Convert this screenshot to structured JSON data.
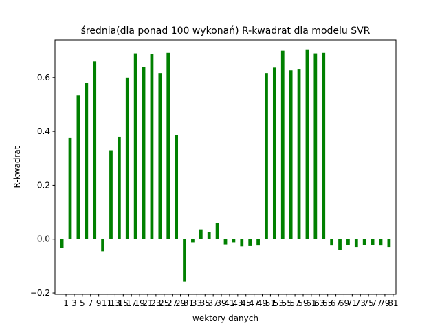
{
  "chart_data": {
    "type": "bar",
    "title": "średnia(dla ponad 100 wykonań) R-kwadrat dla modelu SVR",
    "xlabel": "wektory danych",
    "ylabel": "R-kwadrat",
    "bar_color": "#008000",
    "ylim": [
      -0.205,
      0.74
    ],
    "xlim": [
      -1.7,
      81.7
    ],
    "yticks": [
      -0.2,
      0.0,
      0.2,
      0.4,
      0.6
    ],
    "ytick_labels": [
      "−0.2",
      "0.0",
      "0.2",
      "0.4",
      "0.6"
    ],
    "xticks": [
      1,
      3,
      5,
      7,
      9,
      11,
      13,
      15,
      17,
      19,
      21,
      23,
      25,
      27,
      29,
      31,
      33,
      35,
      37,
      39,
      41,
      43,
      45,
      47,
      49,
      51,
      53,
      55,
      57,
      59,
      61,
      63,
      65,
      67,
      69,
      71,
      73,
      75,
      77,
      79,
      81
    ],
    "bar_width": 0.8,
    "x": [
      0,
      2,
      4,
      6,
      8,
      10,
      12,
      14,
      16,
      18,
      20,
      22,
      24,
      26,
      28,
      30,
      32,
      34,
      36,
      38,
      40,
      42,
      44,
      46,
      48,
      50,
      52,
      54,
      56,
      58,
      60,
      62,
      64,
      66,
      68,
      70,
      72,
      74,
      76,
      78,
      80
    ],
    "values": [
      -0.033,
      0.375,
      0.535,
      0.58,
      0.66,
      -0.045,
      0.33,
      0.38,
      0.6,
      0.69,
      0.638,
      0.688,
      0.617,
      0.692,
      0.385,
      -0.158,
      -0.012,
      0.036,
      0.026,
      0.059,
      -0.02,
      -0.012,
      -0.027,
      -0.026,
      -0.024,
      0.617,
      0.637,
      0.7,
      0.627,
      0.63,
      0.705,
      0.69,
      0.692,
      -0.024,
      -0.041,
      -0.022,
      -0.029,
      -0.022,
      -0.022,
      -0.024,
      -0.029
    ],
    "grid": false,
    "legend": "none"
  }
}
